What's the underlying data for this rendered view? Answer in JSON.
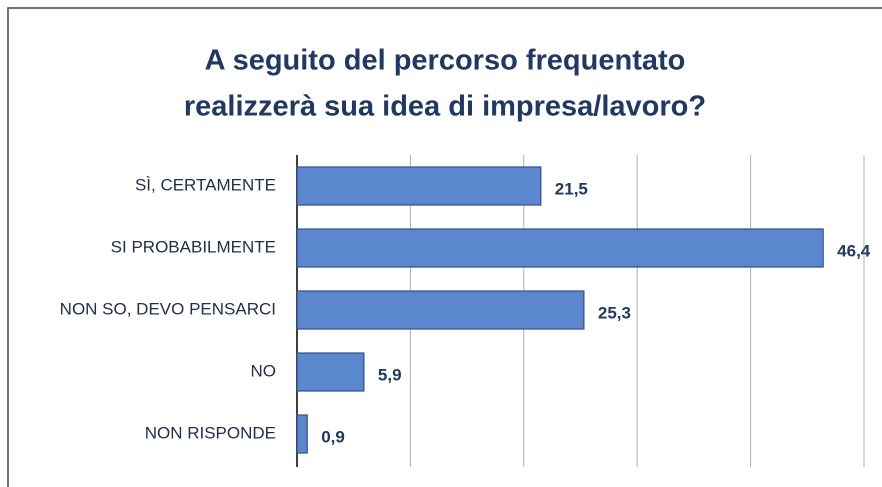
{
  "chart_data": {
    "type": "bar",
    "orientation": "horizontal",
    "title": [
      "A seguito del percorso frequentato",
      "realizzerà sua idea di impresa/lavoro?"
    ],
    "categories": [
      "SÌ, CERTAMENTE",
      "SI PROBABILMENTE",
      "NON SO, DEVO PENSARCI",
      "NO",
      "NON RISPONDE"
    ],
    "values": [
      21.5,
      46.4,
      25.3,
      5.9,
      0.9
    ],
    "value_labels": [
      "21,5",
      "46,4",
      "25,3",
      "5,9",
      "0,9"
    ],
    "color": "#5b87cf",
    "xlim": [
      0,
      50
    ],
    "xticks": [
      0,
      10,
      20,
      30,
      40,
      50
    ],
    "grid": true
  }
}
